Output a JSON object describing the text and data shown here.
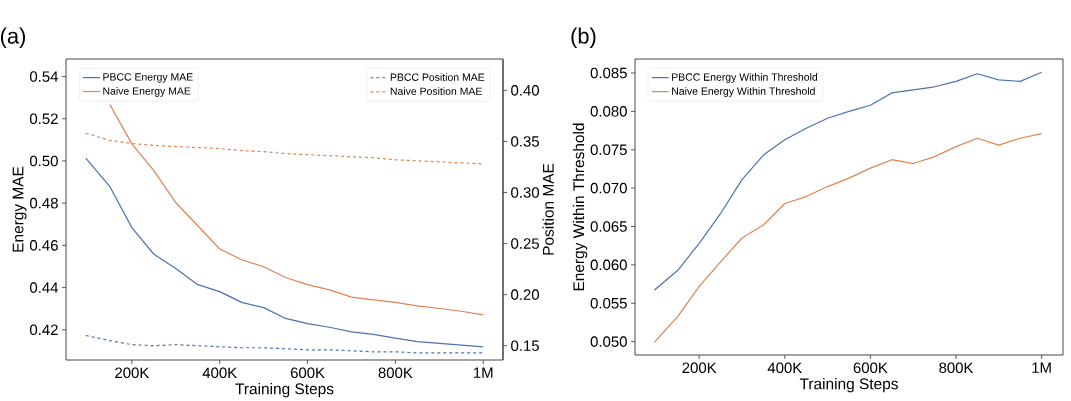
{
  "chart_data": [
    {
      "type": "line",
      "title": "(a)",
      "xlabel": "Training Steps",
      "ylabel": "Energy MAE",
      "y2label": "Position MAE",
      "x": [
        95000,
        150000,
        200000,
        250000,
        300000,
        350000,
        400000,
        450000,
        500000,
        550000,
        600000,
        650000,
        700000,
        750000,
        800000,
        850000,
        900000,
        950000,
        1000000
      ],
      "series": [
        {
          "name": "PBCC Energy MAE",
          "color": "#4c72b0",
          "line_style": "solid",
          "values": [
            0.5013,
            0.4878,
            0.4684,
            0.4558,
            0.449,
            0.4414,
            0.4381,
            0.433,
            0.4305,
            0.4254,
            0.4229,
            0.4212,
            0.419,
            0.4178,
            0.4161,
            0.4144,
            0.4136,
            0.4127,
            0.4119
          ]
        },
        {
          "name": "Naive Energy MAE",
          "color": "#dd8452",
          "line_style": "solid",
          "values": [
            null,
            0.5267,
            0.5081,
            0.4954,
            0.4803,
            0.4693,
            0.4583,
            0.4532,
            0.4499,
            0.4448,
            0.4414,
            0.4389,
            0.4355,
            0.4342,
            0.433,
            0.4313,
            0.4301,
            0.4288,
            0.4271
          ]
        },
        {
          "name": "PBCC Position MAE",
          "color": "#4c72b0",
          "line_style": "dashed",
          "axis": "y2",
          "values": [
            0.16,
            0.155,
            0.151,
            0.15,
            0.151,
            0.15,
            0.149,
            0.148,
            0.148,
            0.147,
            0.146,
            0.146,
            0.145,
            0.144,
            0.144,
            0.143,
            0.143,
            0.143,
            0.143
          ]
        },
        {
          "name": "Naive Position MAE",
          "color": "#dd8452",
          "line_style": "dashed",
          "axis": "y2",
          "values": [
            0.358,
            0.351,
            0.348,
            0.346,
            0.345,
            0.344,
            0.343,
            0.341,
            0.34,
            0.338,
            0.337,
            0.336,
            0.335,
            0.334,
            0.332,
            0.331,
            0.33,
            0.329,
            0.328
          ]
        }
      ],
      "xlim": [
        50000,
        1045000
      ],
      "xticks": [
        {
          "value": 200000,
          "label": "200K"
        },
        {
          "value": 400000,
          "label": "400K"
        },
        {
          "value": 600000,
          "label": "600K"
        },
        {
          "value": 800000,
          "label": "800K"
        },
        {
          "value": 1000000,
          "label": "1M"
        }
      ],
      "ylim": [
        0.4057,
        0.5483
      ],
      "yticks": [
        0.42,
        0.44,
        0.46,
        0.48,
        {
          "value": 0.5,
          "label": "0.50"
        },
        0.52,
        0.54
      ],
      "y2lim": [
        0.136,
        0.4307
      ],
      "y2ticks": [
        0.15,
        {
          "value": 0.2,
          "label": "0.20"
        },
        0.25,
        {
          "value": 0.3,
          "label": "0.30"
        },
        0.35,
        {
          "value": 0.4,
          "label": "0.40"
        }
      ],
      "legend": "top left",
      "marker": "none",
      "grid": false
    },
    {
      "type": "line",
      "title": "(b)",
      "xlabel": "Training Steps",
      "ylabel": "Energy Within Threshold",
      "x": [
        95000,
        150000,
        200000,
        250000,
        300000,
        350000,
        400000,
        450000,
        500000,
        550000,
        600000,
        650000,
        700000,
        750000,
        800000,
        850000,
        900000,
        950000,
        1000000
      ],
      "series": [
        {
          "name": "PBCC Energy Within Threshold",
          "color": "#4c72b0",
          "values": [
            0.0567,
            0.0593,
            0.0628,
            0.0667,
            0.0711,
            0.0743,
            0.0763,
            0.0778,
            0.0791,
            0.08,
            0.0808,
            0.0824,
            0.0828,
            0.0832,
            0.0839,
            0.0849,
            0.0841,
            0.0839,
            0.0851
          ]
        },
        {
          "name": "Naive Energy Within Threshold",
          "color": "#dd8452",
          "values": [
            0.0499,
            0.0533,
            0.0572,
            0.0604,
            0.0635,
            0.0652,
            0.068,
            0.0689,
            0.0702,
            0.0713,
            0.0726,
            0.0737,
            0.0732,
            0.0741,
            0.0754,
            0.0765,
            0.0756,
            0.0765,
            0.0771
          ]
        }
      ],
      "xlim": [
        50000,
        1050000
      ],
      "xticks": [
        {
          "value": 200000,
          "label": "200K"
        },
        {
          "value": 400000,
          "label": "400K"
        },
        {
          "value": 600000,
          "label": "600K"
        },
        {
          "value": 800000,
          "label": "800K"
        },
        {
          "value": 1000000,
          "label": "1M"
        }
      ],
      "ylim": [
        0.04826,
        0.08682
      ],
      "yticks": [
        {
          "value": 0.05,
          "label": "0.050"
        },
        0.055,
        {
          "value": 0.06,
          "label": "0.060"
        },
        0.065,
        {
          "value": 0.07,
          "label": "0.070"
        },
        0.075,
        {
          "value": 0.08,
          "label": "0.080"
        },
        0.085
      ],
      "legend": "top left",
      "marker": "none",
      "grid": false
    }
  ]
}
